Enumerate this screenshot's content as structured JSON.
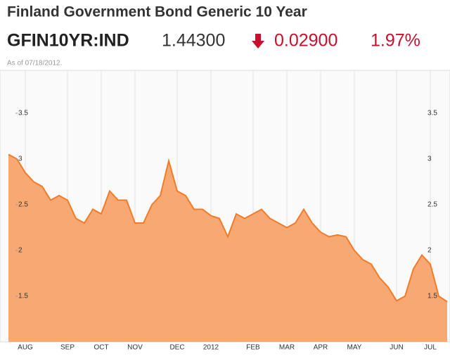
{
  "header": {
    "title": "Finland Government Bond Generic 10 Year",
    "symbol": "GFIN10YR:IND",
    "price": "1.44300",
    "change": "0.02900",
    "change_pct": "1.97%",
    "as_of": "As of 07/18/2012."
  },
  "chart_data": {
    "type": "area",
    "color": "#f07c2a",
    "fill": "#f8a873",
    "categories": [
      null,
      null,
      "AUG",
      null,
      null,
      null,
      null,
      "SEP",
      null,
      null,
      null,
      "OCT",
      null,
      null,
      null,
      "NOV",
      null,
      null,
      null,
      null,
      "DEC",
      null,
      null,
      null,
      "2012",
      null,
      null,
      null,
      null,
      "FEB",
      null,
      null,
      null,
      "MAR",
      null,
      null,
      null,
      "APR",
      null,
      null,
      null,
      "MAY",
      null,
      null,
      null,
      null,
      "JUN",
      null,
      null,
      null,
      "JUL",
      null,
      null
    ],
    "values": [
      3.05,
      3.0,
      2.85,
      2.75,
      2.7,
      2.55,
      2.6,
      2.55,
      2.35,
      2.3,
      2.45,
      2.4,
      2.65,
      2.55,
      2.55,
      2.3,
      2.3,
      2.5,
      2.6,
      2.98,
      2.65,
      2.6,
      2.45,
      2.45,
      2.38,
      2.35,
      2.15,
      2.4,
      2.35,
      2.4,
      2.45,
      2.35,
      2.3,
      2.25,
      2.3,
      2.45,
      2.3,
      2.2,
      2.15,
      2.17,
      2.15,
      2.0,
      1.9,
      1.85,
      1.7,
      1.6,
      1.45,
      1.5,
      1.8,
      1.95,
      1.85,
      1.5,
      1.44
    ],
    "ylim": [
      1,
      4
    ],
    "yticks": [
      1.5,
      2,
      2.5,
      3,
      3.5
    ],
    "grid": true
  }
}
